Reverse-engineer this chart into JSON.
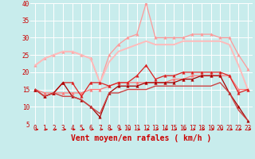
{
  "xlabel": "Vent moyen/en rafales ( km/h )",
  "xlim": [
    -0.5,
    23.5
  ],
  "ylim": [
    5,
    40
  ],
  "yticks": [
    5,
    10,
    15,
    20,
    25,
    30,
    35,
    40
  ],
  "xticks": [
    0,
    1,
    2,
    3,
    4,
    5,
    6,
    7,
    8,
    9,
    10,
    11,
    12,
    13,
    14,
    15,
    16,
    17,
    18,
    19,
    20,
    21,
    22,
    23
  ],
  "bg_color": "#c8ecec",
  "series": [
    {
      "y": [
        22,
        24,
        25,
        26,
        26,
        25,
        24,
        17,
        25,
        28,
        30,
        31,
        40,
        30,
        30,
        30,
        30,
        31,
        31,
        31,
        30,
        30,
        25,
        21
      ],
      "color": "#ff9999",
      "marker": "^",
      "linewidth": 0.9,
      "markersize": 2.5
    },
    {
      "y": [
        22,
        24,
        25,
        26,
        26,
        25,
        24,
        17,
        23,
        26,
        27,
        28,
        29,
        28,
        28,
        28,
        29,
        29,
        29,
        29,
        29,
        28,
        22,
        15
      ],
      "color": "#ffbbbb",
      "marker": null,
      "linewidth": 1.4,
      "markersize": 0
    },
    {
      "y": [
        15,
        14,
        14,
        14,
        14,
        14,
        15,
        15,
        16,
        17,
        17,
        17,
        17,
        17,
        17,
        18,
        18,
        19,
        19,
        19,
        19,
        19,
        15,
        15
      ],
      "color": "#ff7777",
      "marker": "^",
      "linewidth": 0.9,
      "markersize": 2.5
    },
    {
      "y": [
        15,
        13,
        14,
        17,
        17,
        13,
        17,
        17,
        16,
        17,
        17,
        19,
        22,
        18,
        19,
        19,
        20,
        20,
        20,
        20,
        20,
        19,
        14,
        15
      ],
      "color": "#dd2222",
      "marker": "^",
      "linewidth": 0.9,
      "markersize": 2.5
    },
    {
      "y": [
        15,
        13,
        14,
        17,
        13,
        12,
        10,
        7,
        14,
        16,
        16,
        16,
        17,
        17,
        17,
        17,
        18,
        18,
        19,
        19,
        19,
        14,
        10,
        6
      ],
      "color": "#aa0000",
      "marker": "^",
      "linewidth": 0.9,
      "markersize": 2.5
    },
    {
      "y": [
        15,
        13,
        14,
        13,
        13,
        12,
        10,
        8,
        14,
        14,
        15,
        15,
        15,
        16,
        16,
        16,
        16,
        16,
        16,
        16,
        17,
        14,
        9,
        6
      ],
      "color": "#cc4444",
      "marker": null,
      "linewidth": 1.0,
      "markersize": 0
    }
  ],
  "arrow_color": "#cc0000",
  "grid_color": "#ffffff",
  "tick_label_color": "#cc0000",
  "axis_label_color": "#cc0000",
  "tick_fontsize": 5.5,
  "xlabel_fontsize": 7
}
